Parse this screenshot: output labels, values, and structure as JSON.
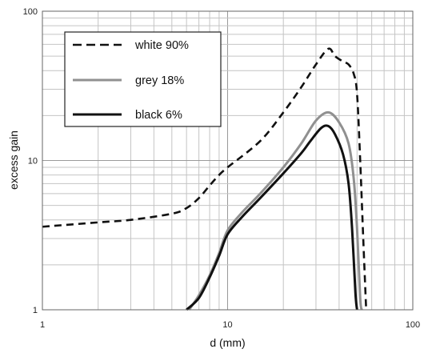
{
  "chart_data": {
    "type": "line",
    "xscale": "log",
    "yscale": "log",
    "xlim": [
      1,
      100
    ],
    "ylim": [
      1,
      100
    ],
    "xlabel": "d (mm)",
    "ylabel": "excess gain",
    "x_ticks": [
      1,
      10,
      100
    ],
    "x_tick_labels": [
      "1",
      "10",
      "100"
    ],
    "y_ticks": [
      1,
      10,
      100
    ],
    "y_tick_labels": [
      "1",
      "10",
      "100"
    ],
    "grid": true,
    "legend": "top-left",
    "series": [
      {
        "name": "white 90%",
        "color": "#111111",
        "style": "dashed",
        "points": [
          [
            1,
            3.6
          ],
          [
            2,
            3.85
          ],
          [
            3,
            4.0
          ],
          [
            5,
            4.4
          ],
          [
            6,
            4.8
          ],
          [
            7,
            5.6
          ],
          [
            8,
            6.8
          ],
          [
            9,
            8.0
          ],
          [
            10,
            9.0
          ],
          [
            15,
            13.5
          ],
          [
            20,
            21
          ],
          [
            25,
            31
          ],
          [
            30,
            44
          ],
          [
            35,
            56
          ],
          [
            38,
            50
          ],
          [
            42,
            46
          ],
          [
            45,
            44
          ],
          [
            48,
            38
          ],
          [
            50,
            28
          ],
          [
            52,
            10
          ],
          [
            54,
            3
          ],
          [
            56,
            1
          ]
        ]
      },
      {
        "name": "grey 18%",
        "color": "#909090",
        "style": "solid",
        "points": [
          [
            6.2,
            1.0
          ],
          [
            7,
            1.25
          ],
          [
            8,
            1.7
          ],
          [
            9,
            2.4
          ],
          [
            10,
            3.4
          ],
          [
            12,
            4.5
          ],
          [
            15,
            6.0
          ],
          [
            20,
            9.0
          ],
          [
            25,
            13.0
          ],
          [
            30,
            18.5
          ],
          [
            35,
            21
          ],
          [
            40,
            18
          ],
          [
            45,
            13
          ],
          [
            48,
            7.5
          ],
          [
            50,
            3.5
          ],
          [
            52,
            1.2
          ],
          [
            53,
            1
          ]
        ]
      },
      {
        "name": "black 6%",
        "color": "#111111",
        "style": "solid",
        "points": [
          [
            6.0,
            1.0
          ],
          [
            7,
            1.2
          ],
          [
            8,
            1.65
          ],
          [
            9,
            2.3
          ],
          [
            10,
            3.2
          ],
          [
            12,
            4.2
          ],
          [
            15,
            5.6
          ],
          [
            20,
            8.2
          ],
          [
            25,
            11.2
          ],
          [
            28,
            13.5
          ],
          [
            32,
            16.5
          ],
          [
            35,
            17
          ],
          [
            38,
            15
          ],
          [
            42,
            11
          ],
          [
            45,
            7
          ],
          [
            47,
            3.5
          ],
          [
            49,
            1.3
          ],
          [
            50,
            1
          ]
        ]
      }
    ]
  }
}
